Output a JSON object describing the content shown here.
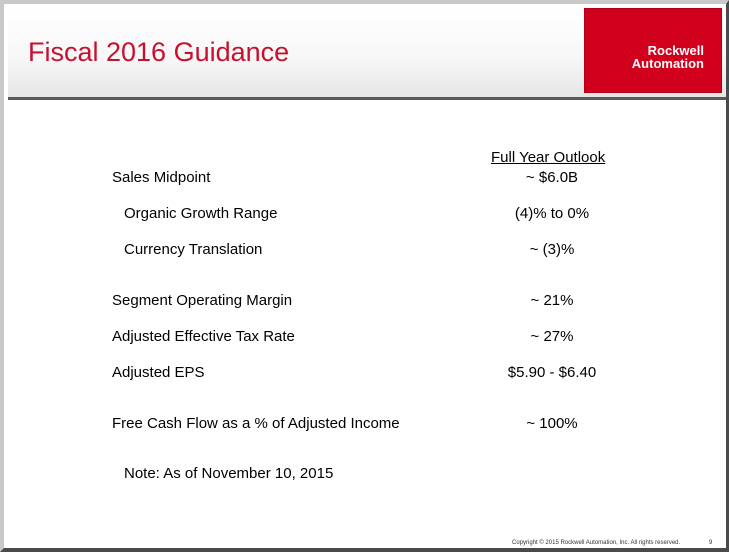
{
  "slide": {
    "title": "Fiscal 2016 Guidance",
    "logo": {
      "line1": "Rockwell",
      "line2": "Automation",
      "color": "#d1001c"
    },
    "column_header": "Full Year Outlook",
    "rows": [
      {
        "label": "Sales Midpoint",
        "value": "~ $6.0B"
      },
      {
        "label": "Organic Growth Range",
        "value": "(4)% to 0%"
      },
      {
        "label": "Currency Translation",
        "value": "~ (3)%"
      },
      {
        "label": "Segment Operating Margin",
        "value": "~ 21%"
      },
      {
        "label": "Adjusted Effective Tax Rate",
        "value": "~ 27%"
      },
      {
        "label": "Adjusted EPS",
        "value": "$5.90 - $6.40"
      },
      {
        "label": "Free Cash Flow as a % of Adjusted Income",
        "value": "~ 100%"
      }
    ],
    "note": "Note: As of November 10, 2015",
    "footer": "Copyright © 2015 Rockwell Automation, Inc. All rights reserved.",
    "page_number": "9",
    "accent_color": "#c8102e"
  }
}
